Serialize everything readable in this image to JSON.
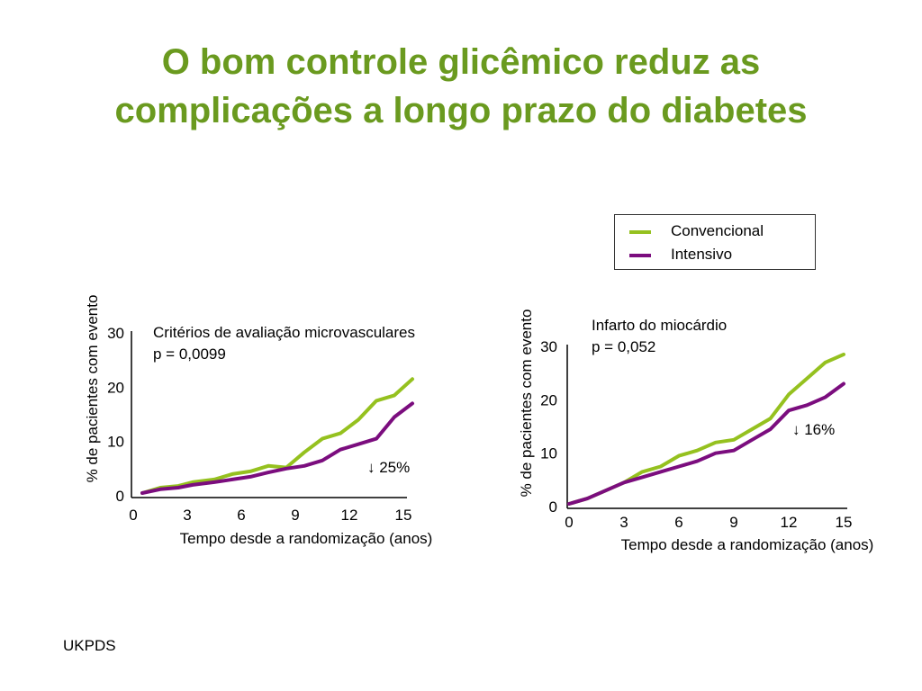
{
  "title_line1": "O bom controle glicêmico reduz as",
  "title_line2": "complicações a longo prazo do diabetes",
  "legend": {
    "items": [
      {
        "label": "Convencional",
        "color": "#95c11f"
      },
      {
        "label": "Intensivo",
        "color": "#7b0d7e"
      }
    ]
  },
  "source": "UKPDS",
  "chart_data": [
    {
      "type": "line",
      "annotation_title": "Critérios de avaliação microvasculares",
      "annotation_p": "p = 0,0099",
      "reduction_label": "↓ 25%",
      "xlabel": "Tempo desde a randomização (anos)",
      "ylabel": "% de pacientes com evento",
      "xlim": [
        0,
        15
      ],
      "ylim": [
        0,
        30
      ],
      "xticks": [
        "0",
        "3",
        "6",
        "9",
        "12",
        "15"
      ],
      "yticks": [
        "0",
        "10",
        "20",
        "30"
      ],
      "series": [
        {
          "name": "Convencional",
          "color": "#95c11f",
          "x": [
            0.5,
            1.5,
            2.5,
            3.3,
            4.5,
            5.5,
            6.5,
            7.5,
            8.5,
            9.5,
            10.5,
            11.5,
            12.5,
            13.5,
            14.5,
            15.5
          ],
          "y": [
            0.5,
            1.5,
            1.8,
            2.5,
            3,
            4,
            4.5,
            5.5,
            5.2,
            8,
            10.5,
            11.5,
            14,
            17.5,
            18.5,
            21.5
          ]
        },
        {
          "name": "Intensivo",
          "color": "#7b0d7e",
          "x": [
            0.5,
            1.5,
            2.5,
            3.3,
            4.5,
            5.5,
            6.5,
            7.5,
            8.5,
            9.5,
            10.5,
            11.5,
            12.5,
            13.5,
            14.5,
            15.5
          ],
          "y": [
            0.5,
            1.2,
            1.5,
            2,
            2.5,
            3,
            3.5,
            4.3,
            5,
            5.5,
            6.5,
            8.5,
            9.5,
            10.5,
            14.5,
            17
          ]
        }
      ]
    },
    {
      "type": "line",
      "annotation_title": "Infarto do miocárdio",
      "annotation_p": "p = 0,052",
      "reduction_label": "↓ 16%",
      "xlabel": "Tempo desde a randomização (anos)",
      "ylabel": "% de pacientes com evento",
      "xlim": [
        0,
        15
      ],
      "ylim": [
        0,
        30
      ],
      "xticks": [
        "0",
        "3",
        "6",
        "9",
        "12",
        "15"
      ],
      "yticks": [
        "0",
        "10",
        "20",
        "30"
      ],
      "series": [
        {
          "name": "Convencional",
          "color": "#95c11f",
          "x": [
            0,
            1,
            2,
            3,
            4,
            5,
            6,
            7,
            8,
            9,
            10,
            11,
            12,
            13,
            14,
            15
          ],
          "y": [
            0.5,
            1.5,
            3,
            4.5,
            6.5,
            7.5,
            9.5,
            10.5,
            12,
            12.5,
            14.5,
            16.5,
            21,
            24,
            27,
            28.5
          ]
        },
        {
          "name": "Intensivo",
          "color": "#7b0d7e",
          "x": [
            0,
            1,
            2,
            3,
            4,
            5,
            6,
            7,
            8,
            9,
            10,
            11,
            12,
            13,
            14,
            15
          ],
          "y": [
            0.5,
            1.5,
            3,
            4.5,
            5.5,
            6.5,
            7.5,
            8.5,
            10,
            10.5,
            12.5,
            14.5,
            18,
            19,
            20.5,
            23
          ]
        }
      ]
    }
  ]
}
